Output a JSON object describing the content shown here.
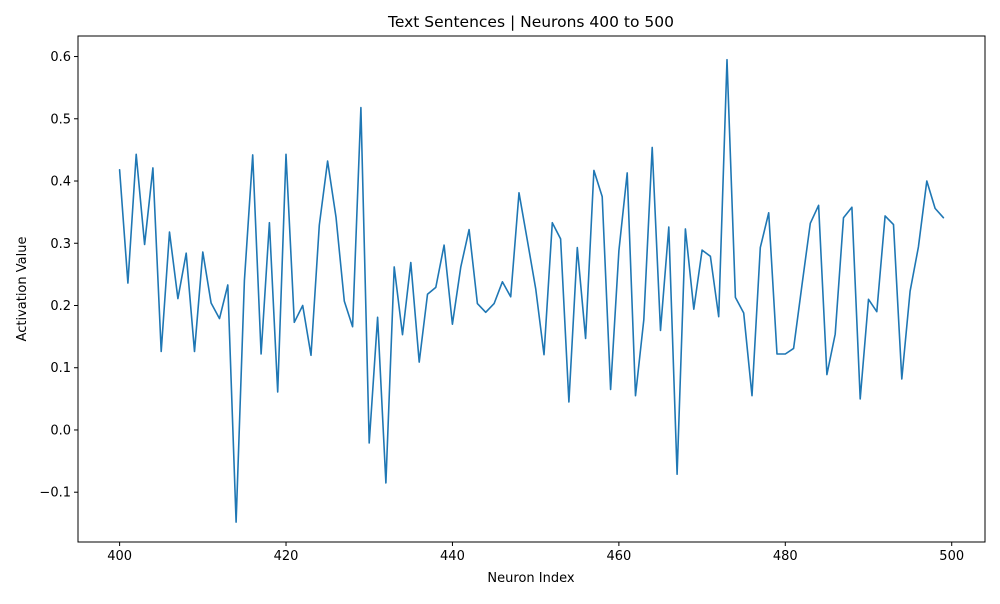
{
  "chart_data": {
    "type": "line",
    "title": "Text Sentences | Neurons 400 to 500",
    "xlabel": "Neuron Index",
    "ylabel": "Activation Value",
    "xlim": [
      395,
      504
    ],
    "ylim": [
      -0.18,
      0.633
    ],
    "xticks": [
      400,
      420,
      440,
      460,
      480,
      500
    ],
    "yticks": [
      -0.1,
      0.0,
      0.1,
      0.2,
      0.3,
      0.4,
      0.5,
      0.6
    ],
    "ytick_labels": [
      "−0.1",
      "0.0",
      "0.1",
      "0.2",
      "0.3",
      "0.4",
      "0.5",
      "0.6"
    ],
    "grid": false,
    "line_color": "#1f77b4",
    "series": [
      {
        "x": [
          400,
          401,
          402,
          403,
          404,
          405,
          406,
          407,
          408,
          409,
          410,
          411,
          412,
          413,
          414,
          415,
          416,
          417,
          418,
          419,
          420,
          421,
          422,
          423,
          424,
          425,
          426,
          427,
          428,
          429,
          430,
          431,
          432,
          433,
          434,
          435,
          436,
          437,
          438,
          439,
          440,
          441,
          442,
          443,
          444,
          445,
          446,
          447,
          448,
          449,
          450,
          451,
          452,
          453,
          454,
          455,
          456,
          457,
          458,
          459,
          460,
          461,
          462,
          463,
          464,
          465,
          466,
          467,
          468,
          469,
          470,
          471,
          472,
          473,
          474,
          475,
          476,
          477,
          478,
          479,
          480,
          481,
          482,
          483,
          484,
          485,
          486,
          487,
          488,
          489,
          490,
          491,
          492,
          493,
          494,
          495,
          496,
          497,
          498,
          499
        ],
        "values": [
          0.418,
          0.236,
          0.443,
          0.298,
          0.421,
          0.126,
          0.318,
          0.211,
          0.284,
          0.126,
          0.286,
          0.204,
          0.179,
          0.233,
          -0.148,
          0.24,
          0.442,
          0.122,
          0.333,
          0.061,
          0.443,
          0.173,
          0.2,
          0.12,
          0.329,
          0.432,
          0.342,
          0.207,
          0.166,
          0.518,
          -0.021,
          0.181,
          -0.085,
          0.262,
          0.153,
          0.269,
          0.109,
          0.218,
          0.229,
          0.297,
          0.17,
          0.262,
          0.322,
          0.203,
          0.189,
          0.203,
          0.238,
          0.214,
          0.381,
          0.305,
          0.227,
          0.121,
          0.333,
          0.307,
          0.045,
          0.293,
          0.147,
          0.417,
          0.375,
          0.065,
          0.288,
          0.413,
          0.055,
          0.177,
          0.454,
          0.16,
          0.326,
          -0.071,
          0.323,
          0.194,
          0.289,
          0.279,
          0.182,
          0.595,
          0.213,
          0.188,
          0.055,
          0.293,
          0.349,
          0.122,
          0.122,
          0.131,
          0.232,
          0.332,
          0.361,
          0.089,
          0.154,
          0.341,
          0.358,
          0.05,
          0.21,
          0.19,
          0.344,
          0.33,
          0.082,
          0.223,
          0.294,
          0.4,
          0.356,
          0.341
        ]
      }
    ]
  }
}
